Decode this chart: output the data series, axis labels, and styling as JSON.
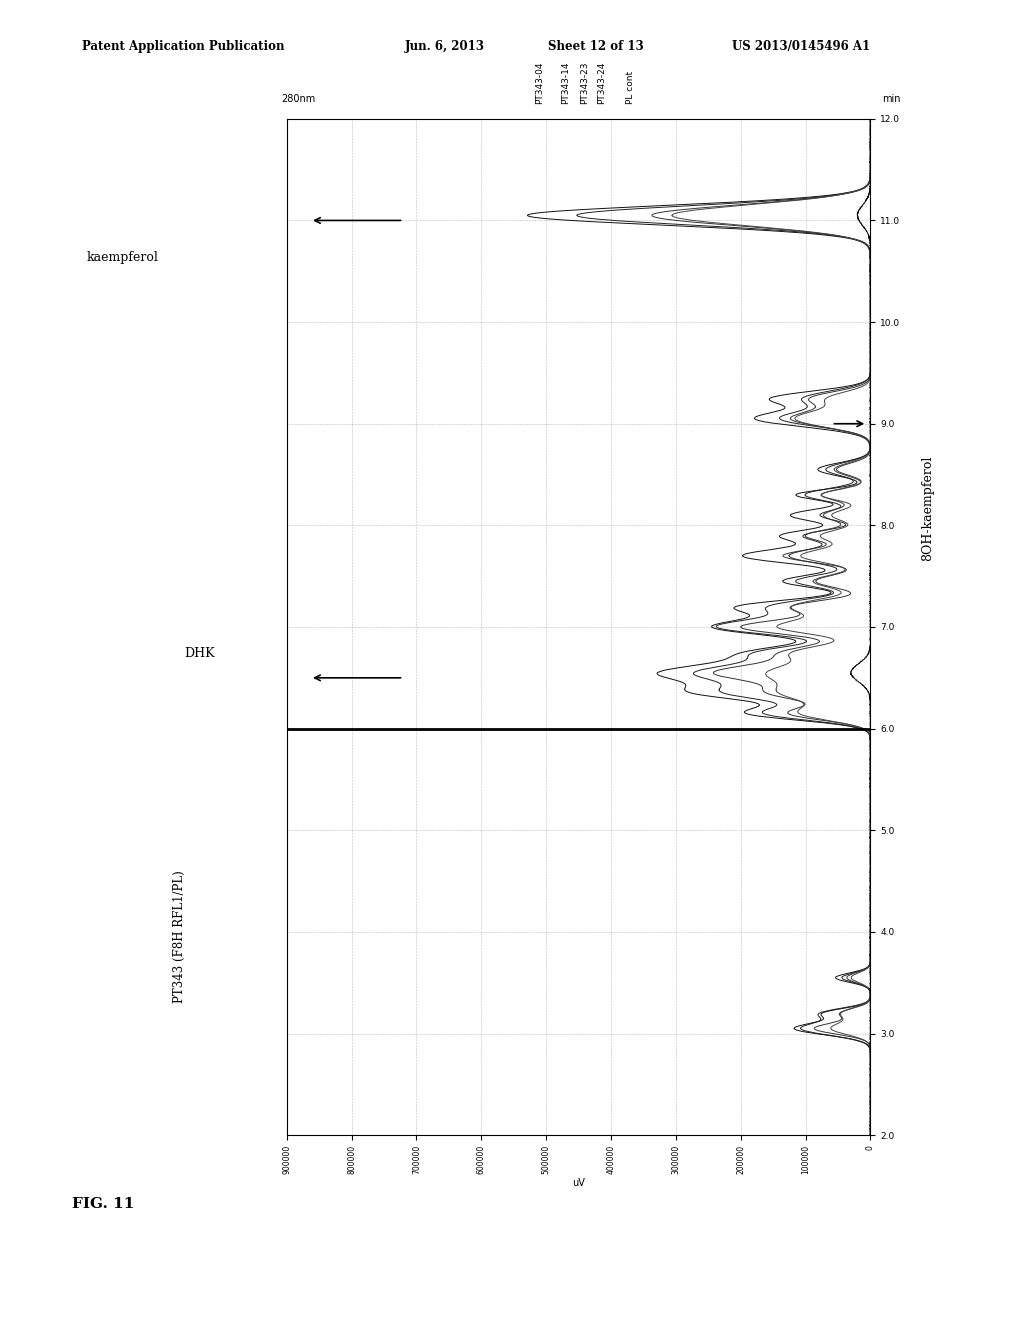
{
  "patent_line1": "Patent Application Publication",
  "patent_line2": "Jun. 6, 2013",
  "patent_line3": "Sheet 12 of 13",
  "patent_line4": "US 2013/0145496 A1",
  "fig_label": "FIG. 11",
  "label_280nm": "280nm",
  "label_min": "min",
  "label_uV": "uV",
  "label_left_bottom": "PT343 (F8H RFL1/PL)",
  "label_DHK": "DHK",
  "label_kaempferol": "kaempferol",
  "label_8OH": "8OH-kaempferol",
  "traces": [
    "PT343-04",
    "PT343-14",
    "PT343-23",
    "PT343-24",
    "PL cont"
  ],
  "x_min": 2.0,
  "x_max": 12.0,
  "y_min": 0,
  "y_max": 900000,
  "x_ticks": [
    2.0,
    3.0,
    4.0,
    5.0,
    6.0,
    7.0,
    8.0,
    9.0,
    10.0,
    11.0,
    12.0
  ],
  "y_ticks": [
    0,
    100000,
    200000,
    300000,
    400000,
    500000,
    600000,
    700000,
    800000,
    900000
  ],
  "bg_color": "#ffffff",
  "trace_color": "#1a1a1a",
  "grid_color": "#aaaaaa",
  "dhk_time": 6.5,
  "kaempferol_time": 11.0,
  "8OH_time": 9.0,
  "separator_time": 6.0
}
